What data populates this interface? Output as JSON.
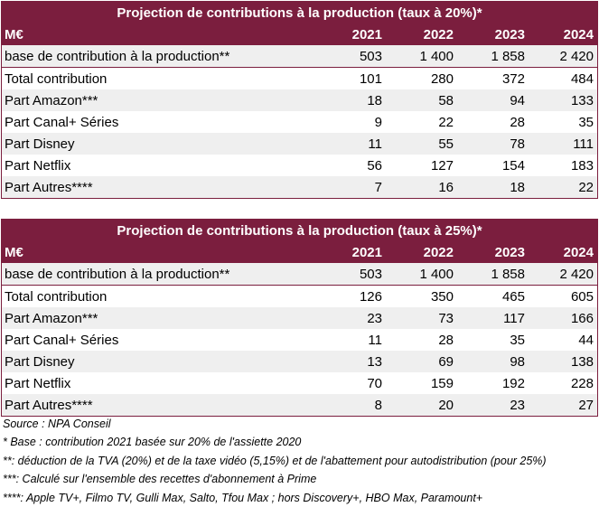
{
  "table1": {
    "title": "Projection de contributions à la production (taux à 20%)*",
    "header": [
      "M€",
      "2021",
      "2022",
      "2023",
      "2024"
    ],
    "rows": [
      [
        "base de contribution à la production**",
        "503",
        "1 400",
        "1 858",
        "2 420"
      ],
      [
        "Total contribution",
        "101",
        "280",
        "372",
        "484"
      ],
      [
        "Part Amazon***",
        "18",
        "58",
        "94",
        "133"
      ],
      [
        "Part Canal+ Séries",
        "9",
        "22",
        "28",
        "35"
      ],
      [
        "Part Disney",
        "11",
        "55",
        "78",
        "111"
      ],
      [
        "Part Netflix",
        "56",
        "127",
        "154",
        "183"
      ],
      [
        "Part Autres****",
        "7",
        "16",
        "18",
        "22"
      ]
    ]
  },
  "table2": {
    "title": "Projection de contributions à la production (taux à 25%)*",
    "header": [
      "M€",
      "2021",
      "2022",
      "2023",
      "2024"
    ],
    "rows": [
      [
        "base de contribution à la production**",
        "503",
        "1 400",
        "1 858",
        "2 420"
      ],
      [
        "Total contribution",
        "126",
        "350",
        "465",
        "605"
      ],
      [
        "Part Amazon***",
        "23",
        "73",
        "117",
        "166"
      ],
      [
        "Part Canal+ Séries",
        "11",
        "28",
        "35",
        "44"
      ],
      [
        "Part Disney",
        "13",
        "69",
        "98",
        "138"
      ],
      [
        "Part Netflix",
        "70",
        "159",
        "192",
        "228"
      ],
      [
        "Part Autres****",
        "8",
        "20",
        "23",
        "27"
      ]
    ]
  },
  "notes": {
    "source": "Source : NPA Conseil",
    "note1": "* Base : contribution 2021 basée sur 20% de l'assiette 2020",
    "note2": "**: déduction de la TVA (20%) et de la taxe vidéo (5,15%) et de l'abattement pour autodistribution (pour 25%)",
    "note3": "***: Calculé sur l'ensemble des recettes d'abonnement à Prime",
    "note4": "****: Apple TV+, Filmo TV, Gulli Max, Salto, Tfou Max ; hors Discovery+, HBO Max, Paramount+"
  },
  "colors": {
    "accent": "#7b1e3e",
    "stripe": "#efefef"
  }
}
